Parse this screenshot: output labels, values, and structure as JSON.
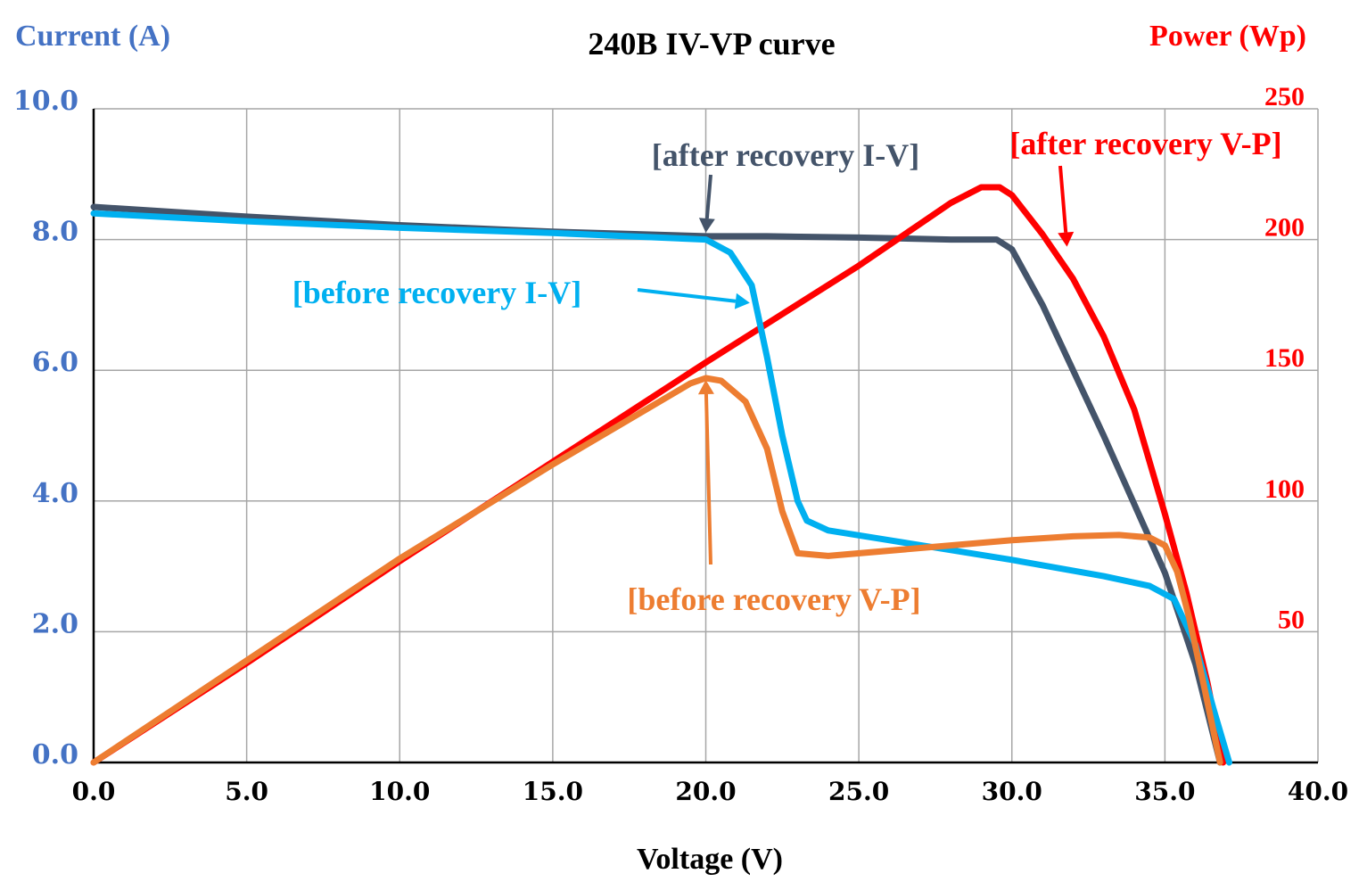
{
  "chart_data": {
    "type": "line",
    "title": "240B IV-VP curve",
    "xlabel": "Voltage (V)",
    "ylabel": "Current (A)",
    "y2label": "Power (Wp)",
    "xlim": [
      0,
      40
    ],
    "ylim": [
      0,
      10
    ],
    "y2lim": [
      0,
      250
    ],
    "x_ticks": [
      "0.0",
      "5.0",
      "10.0",
      "15.0",
      "20.0",
      "25.0",
      "30.0",
      "35.0",
      "40.0"
    ],
    "y_ticks": [
      "0.0",
      "2.0",
      "4.0",
      "6.0",
      "8.0",
      "10.0"
    ],
    "y2_ticks": [
      "50",
      "100",
      "150",
      "200",
      "250"
    ],
    "grid": true,
    "colors": {
      "left_axis": "#4472c4",
      "right_axis": "#ff0000",
      "after_iv": "#44546a",
      "before_iv": "#00b0f0",
      "after_vp": "#ff0000",
      "before_vp": "#ed7d31",
      "grid": "#a6a6a6"
    },
    "series": [
      {
        "name": "after recovery I-V",
        "axis": "left",
        "x": [
          0,
          5,
          10,
          15,
          20,
          22,
          25,
          28,
          29.5,
          30,
          31,
          33,
          35,
          36,
          36.8
        ],
        "y": [
          8.5,
          8.35,
          8.22,
          8.12,
          8.05,
          8.05,
          8.03,
          8.0,
          8.0,
          7.85,
          7.0,
          5.0,
          2.9,
          1.5,
          0.0
        ]
      },
      {
        "name": "before recovery I-V",
        "axis": "left",
        "x": [
          0,
          5,
          10,
          15,
          19,
          20,
          20.8,
          21.5,
          22,
          22.5,
          23,
          23.3,
          24,
          26,
          30,
          33,
          34.5,
          35.3,
          36,
          36.6,
          37.1
        ],
        "y": [
          8.4,
          8.28,
          8.18,
          8.1,
          8.02,
          8.0,
          7.8,
          7.3,
          6.2,
          5.0,
          4.0,
          3.7,
          3.55,
          3.4,
          3.1,
          2.85,
          2.7,
          2.5,
          1.8,
          0.8,
          0.0
        ]
      },
      {
        "name": "after recovery V-P",
        "axis": "right",
        "x": [
          0,
          5,
          10,
          15,
          20,
          25,
          28,
          29,
          29.6,
          30,
          31,
          32,
          33,
          34,
          35,
          35.7,
          36.4,
          36.9
        ],
        "y": [
          0,
          38,
          77,
          115,
          153,
          190,
          214,
          220,
          220,
          217,
          202,
          185,
          163,
          135,
          95,
          65,
          30,
          0
        ]
      },
      {
        "name": "before recovery V-P",
        "axis": "right",
        "x": [
          0,
          5,
          10,
          15,
          19.5,
          20,
          20.5,
          21.3,
          22,
          22.5,
          23,
          24,
          28,
          30,
          32,
          33.5,
          34.5,
          35,
          35.4,
          35.8,
          36.3,
          36.8
        ],
        "y": [
          0,
          39,
          78,
          114,
          145,
          147,
          146,
          138,
          120,
          96,
          80,
          79,
          83,
          85,
          86.5,
          87,
          86,
          83,
          73,
          55,
          28,
          0
        ]
      }
    ],
    "annotations": [
      {
        "text": "[after recovery I-V]",
        "points_to": [
          20,
          8.05
        ],
        "color": "#44546a"
      },
      {
        "text": "[before recovery I-V]",
        "points_to": [
          21,
          7.1
        ],
        "color": "#00b0f0"
      },
      {
        "text": "[after recovery V-P]",
        "points_to": [
          31.8,
          200
        ],
        "color": "#ff0000"
      },
      {
        "text": "[before recovery V-P]",
        "points_to": [
          20,
          147
        ],
        "color": "#ed7d31"
      }
    ]
  }
}
